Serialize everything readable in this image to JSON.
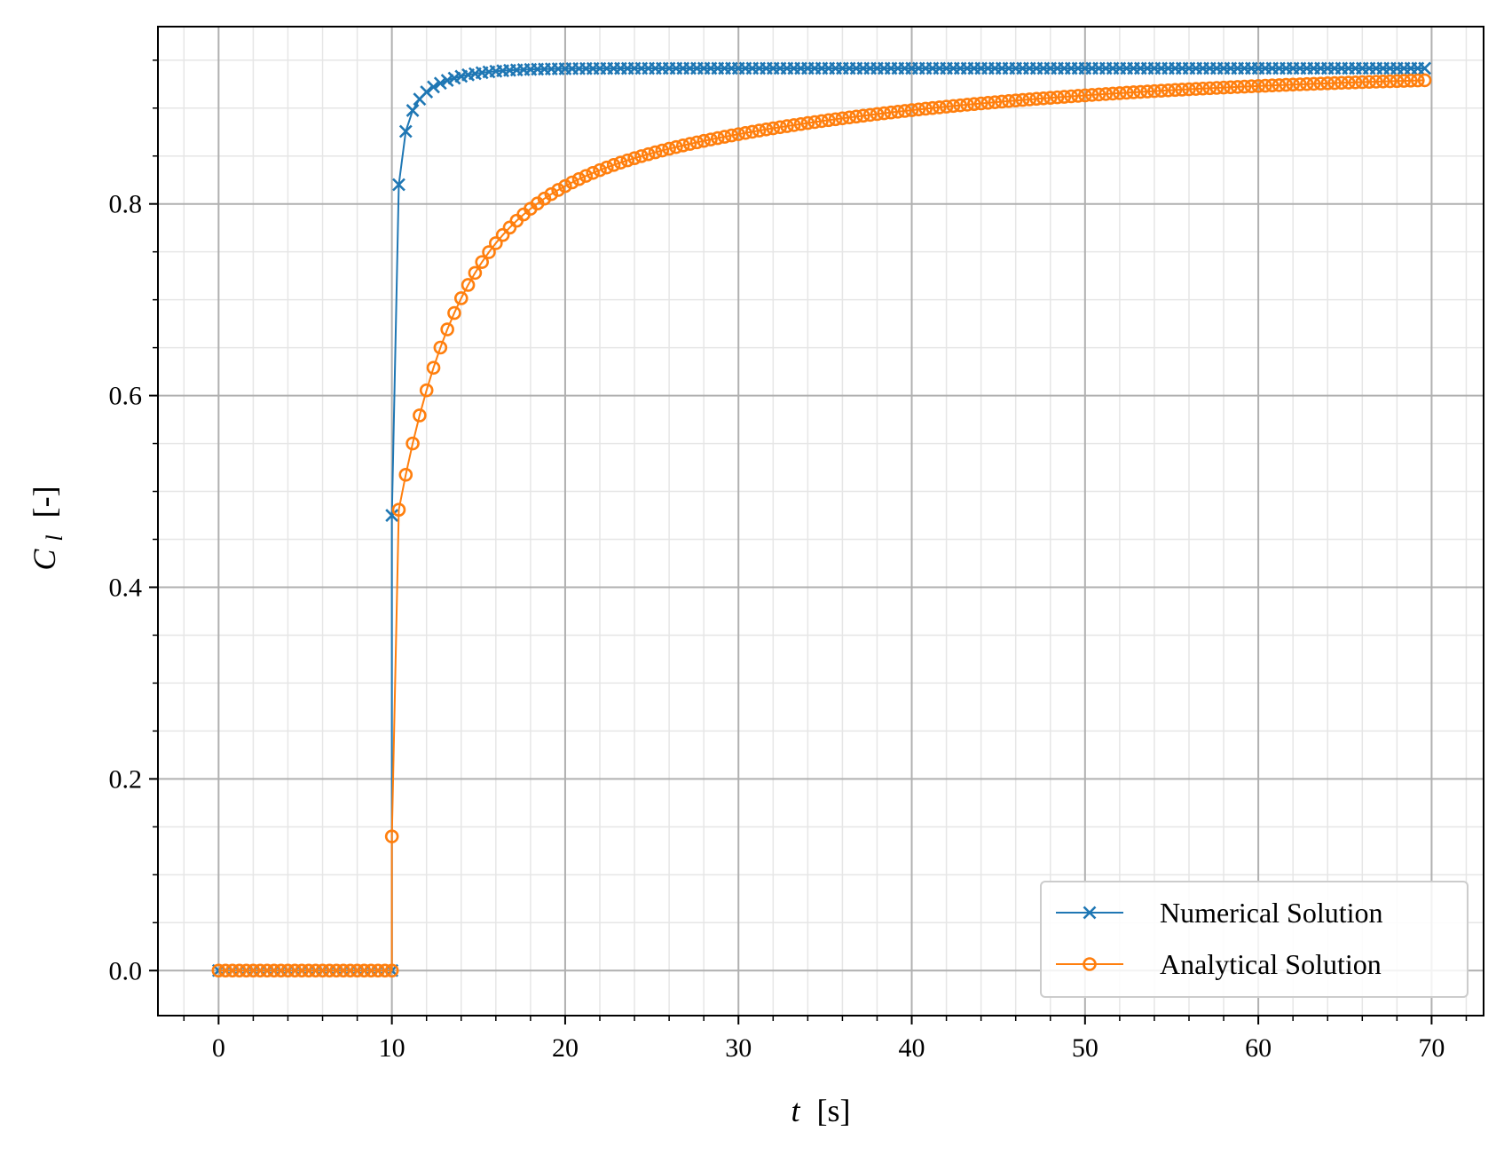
{
  "chart_data": {
    "type": "line",
    "title": "",
    "xlabel_var": "t",
    "xlabel_unit": "[s]",
    "ylabel_var": "C",
    "ylabel_sub": "l",
    "ylabel_unit": "[-]",
    "xlim": [
      -3.5,
      73
    ],
    "ylim": [
      -0.047,
      0.985
    ],
    "x_ticks": [
      0,
      10,
      20,
      30,
      40,
      50,
      60,
      70
    ],
    "x_tick_labels": [
      "0",
      "10",
      "20",
      "30",
      "40",
      "50",
      "60",
      "70"
    ],
    "y_ticks": [
      0.0,
      0.2,
      0.4,
      0.6,
      0.8
    ],
    "y_tick_labels": [
      "0.0",
      "0.2",
      "0.4",
      "0.6",
      "0.8"
    ],
    "grid": {
      "major": true,
      "minor": true
    },
    "legend_position": "lower-right",
    "series": [
      {
        "name": "Numerical Solution",
        "color": "#1f77b4",
        "marker": "x",
        "model": {
          "t0": 10,
          "dt": 0.4,
          "t_end": 69.6,
          "terms": [
            [
              0.195,
              5.5
            ],
            [
              0.11,
              2.0
            ],
            [
              0.0615,
              0.5
            ],
            [
              0.083,
              20.0
            ]
          ],
          "steady": 0.9415,
          "first_value": 0.475
        }
      },
      {
        "name": "Analytical Solution",
        "color": "#ff7f0e",
        "marker": "o",
        "model": {
          "t0": 10,
          "dt": 0.4,
          "t_end": 69.6,
          "terms": [
            [
              0.165,
              0.0455
            ],
            [
              0.335,
              0.3
            ]
          ],
          "steady": 0.94,
          "first_value": 0.14
        }
      }
    ]
  }
}
